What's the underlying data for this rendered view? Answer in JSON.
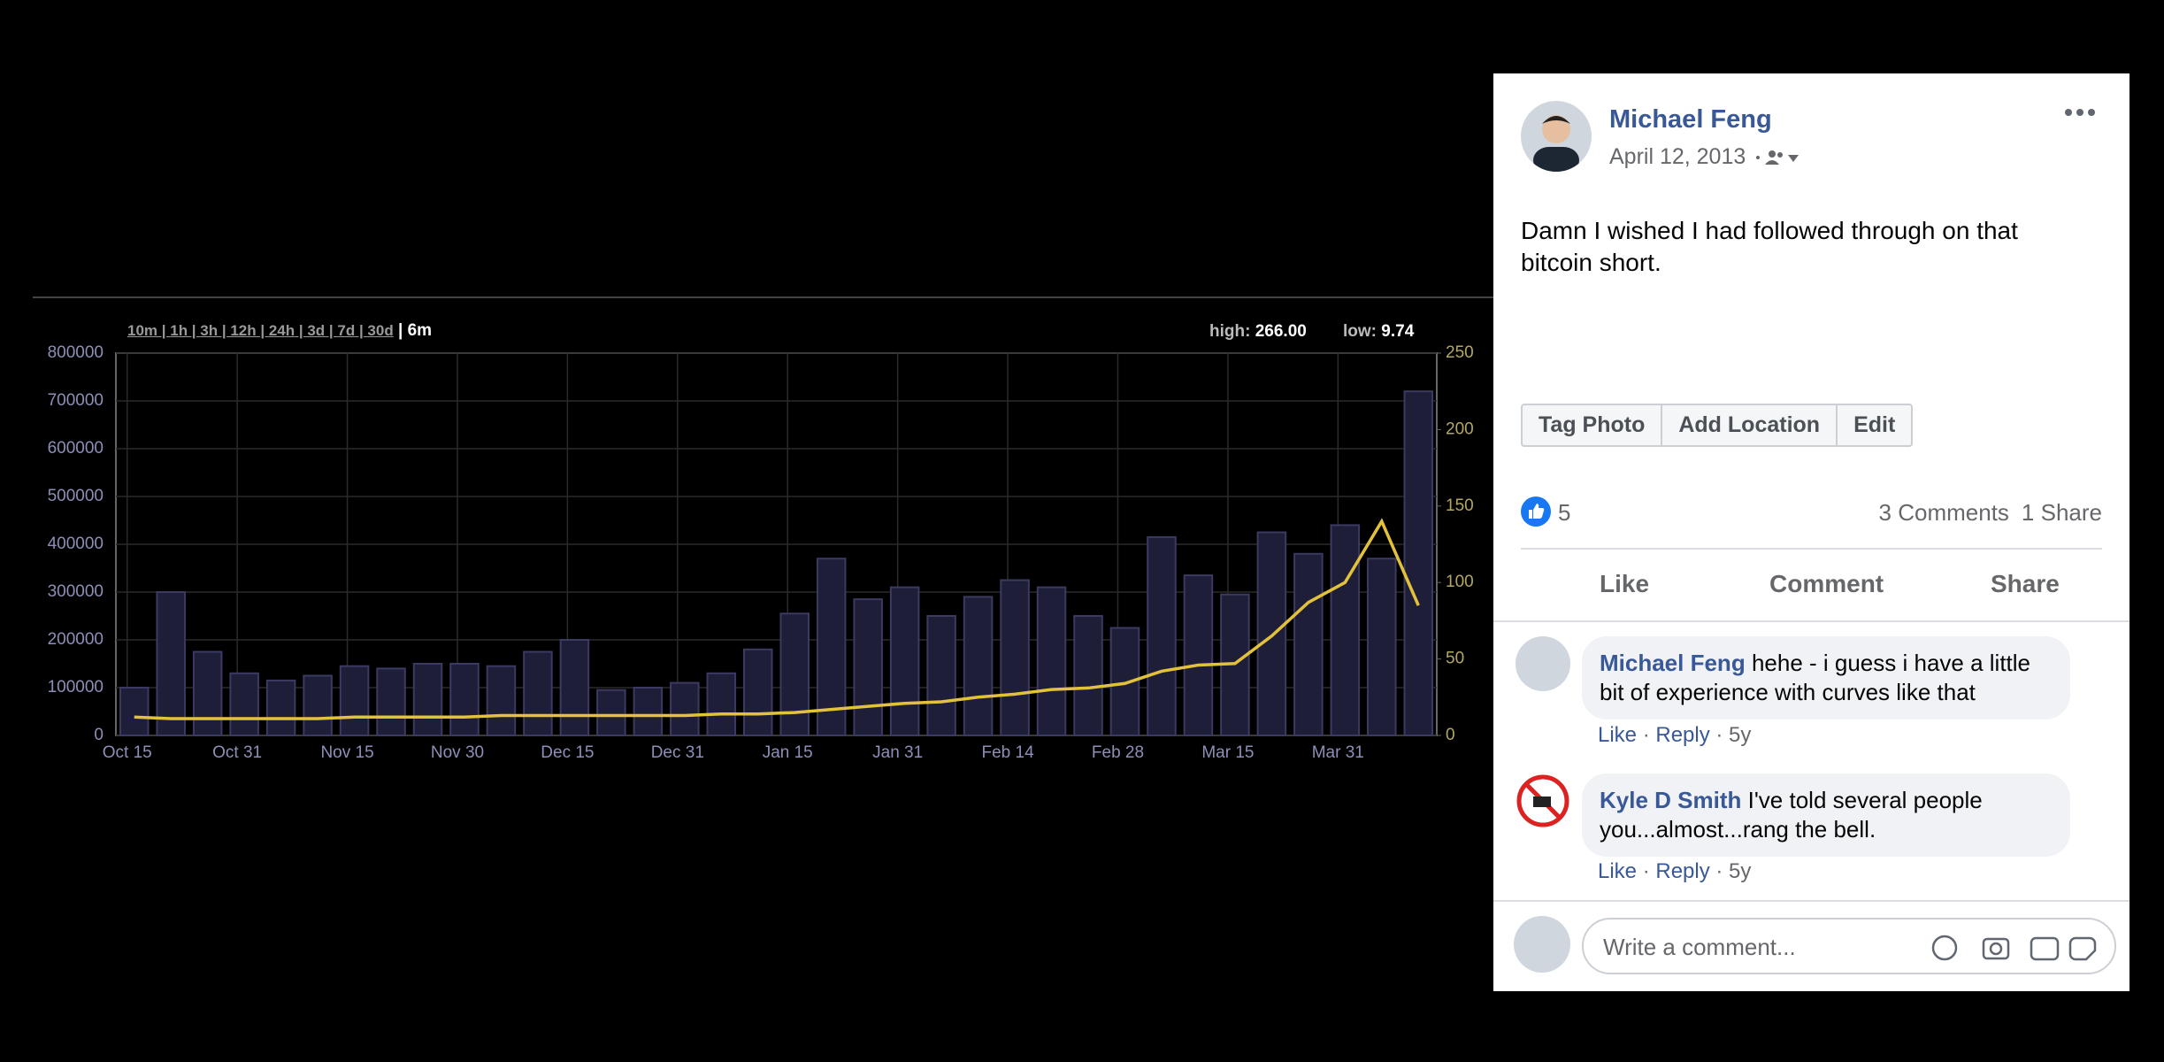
{
  "chart_data": {
    "type": "bar",
    "range_links": [
      "10m",
      "1h",
      "3h",
      "12h",
      "24h",
      "3d",
      "7d",
      "30d",
      "6m"
    ],
    "stats": [
      {
        "label": "high:",
        "value": "266.00"
      },
      {
        "label": "low:",
        "value": "9.74"
      }
    ],
    "categories": [
      "Oct 15",
      null,
      null,
      "Oct 31",
      null,
      null,
      "Nov 15",
      null,
      null,
      "Nov 30",
      null,
      null,
      "Dec 15",
      null,
      null,
      "Dec 31",
      null,
      null,
      "Jan 15",
      null,
      null,
      "Jan 31",
      null,
      null,
      "Feb 14",
      null,
      null,
      "Feb 28",
      null,
      null,
      "Mar 15",
      null,
      null,
      "Mar 31",
      null,
      null
    ],
    "series": [
      {
        "color": "#1e1e38",
        "values": [
          100000,
          300000,
          175000,
          130000,
          115000,
          125000,
          145000,
          140000,
          150000,
          150000,
          145000,
          175000,
          200000,
          95000,
          100000,
          110000,
          130000,
          180000,
          255000,
          370000,
          285000,
          310000,
          250000,
          290000,
          325000,
          310000,
          250000,
          225000,
          415000,
          335000,
          295000,
          425000,
          380000,
          440000,
          370000,
          720000
        ]
      },
      {
        "color": "#e3c23b",
        "axis": "y2",
        "values": [
          12,
          11,
          11,
          11,
          11,
          11,
          12,
          12,
          12,
          12,
          13,
          13,
          13,
          13,
          13,
          13,
          14,
          14,
          15,
          17,
          19,
          21,
          22,
          25,
          27,
          30,
          31,
          34,
          42,
          46,
          47,
          65,
          87,
          100,
          140,
          85
        ]
      }
    ],
    "ylim": [
      0,
      800000
    ],
    "yticks": [
      0,
      100000,
      200000,
      300000,
      400000,
      500000,
      600000,
      700000,
      800000
    ],
    "y2lim": [
      0,
      250
    ],
    "y2ticks": [
      0,
      50,
      100,
      150,
      200,
      250
    ],
    "grid": true
  },
  "post": {
    "author": "Michael Feng",
    "date": "April 12, 2013",
    "text": "Damn I wished I had followed through on that bitcoin short.",
    "tools": [
      "Tag Photo",
      "Add Location",
      "Edit"
    ],
    "likes": "5",
    "comments_count": "3 Comments",
    "shares": "1 Share",
    "buttons": [
      "Like",
      "Comment",
      "Share"
    ],
    "comments": [
      {
        "author": "Michael Feng",
        "text": "hehe - i guess i have a little bit of experience with curves like that",
        "actions": [
          "Like",
          "Reply",
          "5y"
        ]
      },
      {
        "author": "Kyle D Smith",
        "text": "I've told several people you...almost...rang the bell.",
        "actions": [
          "Like",
          "Reply",
          "5y"
        ]
      }
    ],
    "composer": "Write a comment..."
  }
}
